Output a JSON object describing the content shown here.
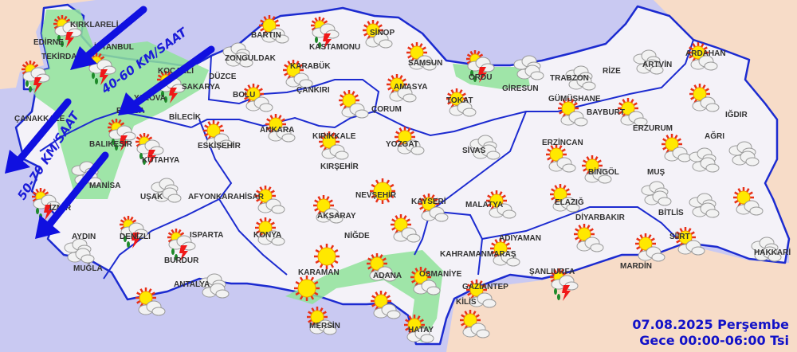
{
  "caption": {
    "date": "07.08.2025 Perşembe",
    "period": "Gece 00:00-06:00 Tsi"
  },
  "wind": [
    {
      "label": "40-60 KM/SAAT"
    },
    {
      "label": "50-70 KM/SAAT"
    }
  ],
  "colors": {
    "sea": "#c9c9f2",
    "land": "#f4f2f8",
    "neighbor": "#f7dcc8",
    "warning_area": "#8fe39a",
    "border": "#1c2bd0",
    "arrow": "#1010e0"
  },
  "provinces": [
    "KIRKLARELİ",
    "EDİRNE",
    "TEKİRDAĞ",
    "İSTANBUL",
    "KOCAELİ",
    "SAKARYA",
    "YALOVA",
    "ÇANAKKALE",
    "BURSA",
    "BALIKESİR",
    "BİLECİK",
    "ESKİŞEHİR",
    "KÜTAHYA",
    "MANİSA",
    "İZMİR",
    "UŞAK",
    "AFYONKARAHİSAR",
    "AYDIN",
    "MUĞLA",
    "DENİZLİ",
    "ISPARTA",
    "BURDUR",
    "ANTALYA",
    "KONYA",
    "AKSARAY",
    "NİĞDE",
    "NEVŞEHİR",
    "KAYSERİ",
    "KARAMAN",
    "MERSİN",
    "ADANA",
    "OSMANİYE",
    "HATAY",
    "GAZİANTEP",
    "KİLİS",
    "KAHRAMANMARAŞ",
    "ADIYAMAN",
    "MALATYA",
    "ELAZIĞ",
    "DİYARBAKIR",
    "MARDİN",
    "ŞANLIURFA",
    "SİİRT",
    "BİTLİS",
    "MUŞ",
    "BİNGÖL",
    "ERZİNCAN",
    "SİVAS",
    "TOKAT",
    "AMASYA",
    "SAMSUN",
    "SİNOP",
    "KASTAMONU",
    "BARTIN",
    "ZONGULDAK",
    "KARABÜK",
    "DÜZCE",
    "BOLU",
    "ÇANKIRI",
    "ANKARA",
    "KIRIKKALE",
    "KIRŞEHİR",
    "YOZGAT",
    "ÇORUM",
    "ORDU",
    "GİRESUN",
    "TRABZON",
    "RİZE",
    "ARTVİN",
    "ARDAHAN",
    "GÜMÜŞHANE",
    "BAYBURT",
    "ERZURUM",
    "IĞDIR",
    "AĞRI",
    "HAKKARİ"
  ],
  "forecast_icons": [
    "thunderstorm",
    "thunderstorm",
    "thunderstorm",
    "thunderstorm",
    "thunderstorm",
    "partly-cloudy",
    "cloudy",
    "thunderstorm",
    "partly-cloudy",
    "partly-cloudy",
    "partly-cloudy",
    "partly-cloudy",
    "partly-cloudy",
    "partly-cloudy",
    "partly-cloudy",
    "partly-cloudy",
    "partly-cloudy",
    "partly-cloudy",
    "partly-cloudy",
    "cloudy",
    "thunderstorm",
    "cloudy",
    "thunderstorm",
    "cloudy",
    "cloudy",
    "thunderstorm",
    "thunderstorm",
    "cloudy",
    "partly-cloudy",
    "partly-cloudy",
    "partly-cloudy",
    "partly-cloudy",
    "sunny",
    "sunny",
    "sunny",
    "partly-cloudy",
    "partly-cloudy",
    "partly-cloudy",
    "partly-cloudy",
    "partly-cloudy",
    "partly-cloudy",
    "partly-cloudy",
    "partly-cloudy",
    "partly-cloudy",
    "partly-cloudy",
    "partly-cloudy",
    "partly-cloudy",
    "partly-cloudy",
    "cloudy",
    "partly-cloudy",
    "partly-cloudy",
    "partly-cloudy",
    "partly-cloudy",
    "partly-cloudy",
    "partly-cloudy",
    "thunderstorm",
    "thunderstorm",
    "cloudy",
    "cloudy",
    "cloudy",
    "partly-cloudy",
    "partly-cloudy",
    "cloudy",
    "partly-cloudy",
    "cloudy",
    "cloudy",
    "cloudy",
    "partly-cloudy"
  ]
}
